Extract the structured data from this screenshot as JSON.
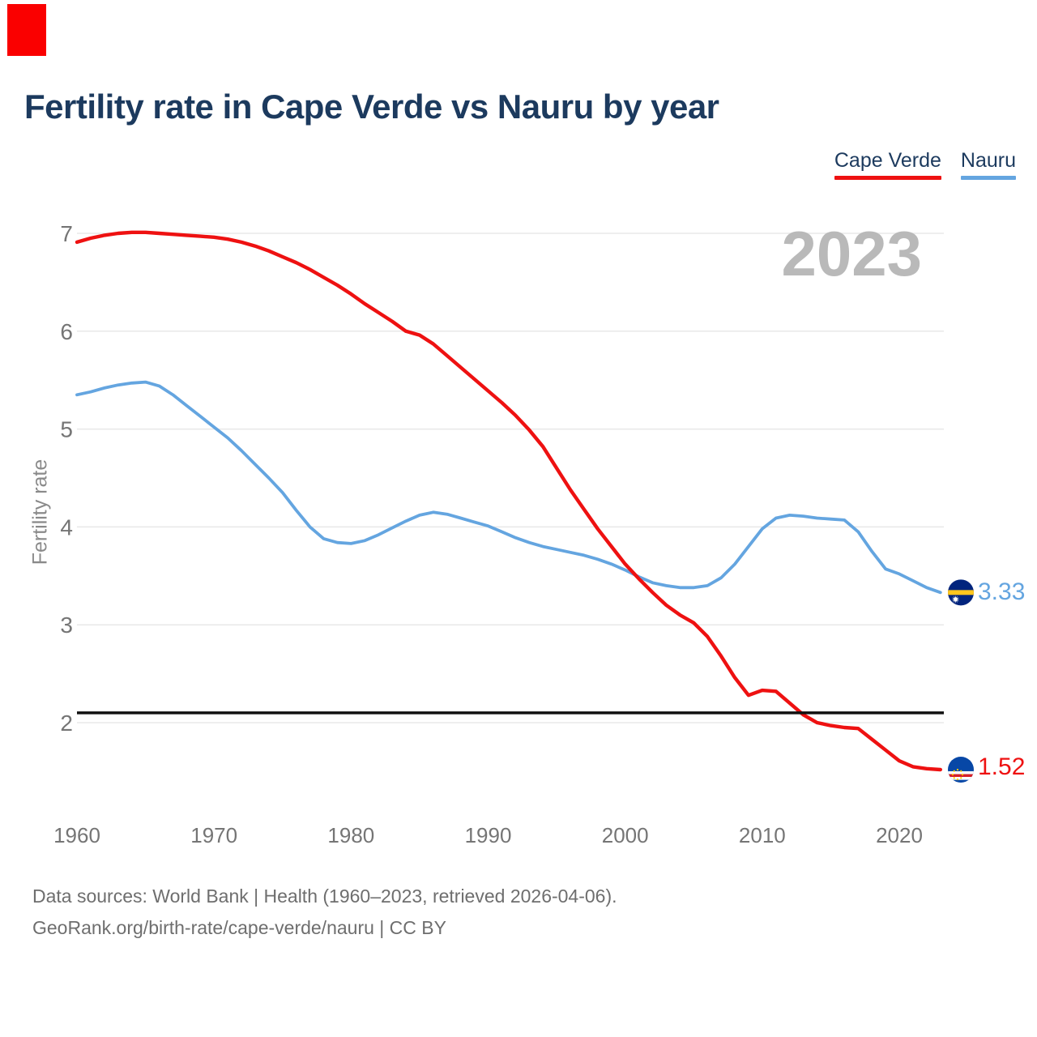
{
  "header": {
    "title": "Fertility rate in Cape Verde vs Nauru by year"
  },
  "legend": {
    "items": [
      {
        "label": "Cape Verde",
        "color": "#ee1111"
      },
      {
        "label": "Nauru",
        "color": "#64a5e0"
      }
    ]
  },
  "chart": {
    "ylabel": "Fertility rate",
    "watermark": "2023"
  },
  "footer": {
    "line1": "Data sources: World Bank | Health (1960–2023, retrieved 2026-04-06).",
    "line2": "GeoRank.org/birth-rate/cape-verde/nauru | CC BY"
  },
  "colors": {
    "title_text": "#1c3a5e",
    "axis_text": "#757575",
    "axis_title_text": "#8a8a8a",
    "watermark_text": "#b9b9b9",
    "footer_text": "#6e6e6e",
    "gridline": "#e8e8e8",
    "corner_mark": "#fa0000",
    "reference_line": "#111111"
  },
  "chart_data": {
    "type": "line",
    "title": "Fertility rate in Cape Verde vs Nauru by year",
    "xlabel": "",
    "ylabel": "Fertility rate",
    "watermark": "2023",
    "grid": true,
    "legend_position": "top-right",
    "xlim": [
      1960,
      2023
    ],
    "ylim": [
      1.35,
      7.15
    ],
    "yticks": [
      7,
      6,
      5,
      4,
      3,
      2
    ],
    "xticks": [
      1960,
      1970,
      1980,
      1990,
      2000,
      2010,
      2020
    ],
    "reference_line": {
      "value": 2.1,
      "color": "#111111"
    },
    "x": [
      1960,
      1961,
      1962,
      1963,
      1964,
      1965,
      1966,
      1967,
      1968,
      1969,
      1970,
      1971,
      1972,
      1973,
      1974,
      1975,
      1976,
      1977,
      1978,
      1979,
      1980,
      1981,
      1982,
      1983,
      1984,
      1985,
      1986,
      1987,
      1988,
      1989,
      1990,
      1991,
      1992,
      1993,
      1994,
      1995,
      1996,
      1997,
      1998,
      1999,
      2000,
      2001,
      2002,
      2003,
      2004,
      2005,
      2006,
      2007,
      2008,
      2009,
      2010,
      2011,
      2012,
      2013,
      2014,
      2015,
      2016,
      2017,
      2018,
      2019,
      2020,
      2021,
      2022,
      2023
    ],
    "series": [
      {
        "name": "Cape Verde",
        "color": "#ee1111",
        "flag": "cape-verde",
        "end_label": "1.52",
        "values": [
          6.91,
          6.95,
          6.98,
          7.0,
          7.01,
          7.01,
          7.0,
          6.99,
          6.98,
          6.97,
          6.96,
          6.94,
          6.91,
          6.87,
          6.82,
          6.76,
          6.7,
          6.63,
          6.55,
          6.47,
          6.38,
          6.28,
          6.19,
          6.1,
          6.0,
          5.96,
          5.87,
          5.75,
          5.63,
          5.51,
          5.39,
          5.27,
          5.14,
          4.99,
          4.82,
          4.6,
          4.38,
          4.18,
          3.98,
          3.8,
          3.62,
          3.47,
          3.33,
          3.2,
          3.1,
          3.02,
          2.88,
          2.68,
          2.46,
          2.28,
          2.33,
          2.32,
          2.2,
          2.08,
          2.0,
          1.97,
          1.95,
          1.94,
          1.83,
          1.72,
          1.61,
          1.55,
          1.53,
          1.52
        ]
      },
      {
        "name": "Nauru",
        "color": "#64a5e0",
        "flag": "nauru",
        "end_label": "3.33",
        "values": [
          5.35,
          5.38,
          5.42,
          5.45,
          5.47,
          5.48,
          5.44,
          5.35,
          5.24,
          5.13,
          5.02,
          4.91,
          4.78,
          4.64,
          4.5,
          4.35,
          4.17,
          4.0,
          3.88,
          3.84,
          3.83,
          3.86,
          3.92,
          3.99,
          4.06,
          4.12,
          4.15,
          4.13,
          4.09,
          4.05,
          4.01,
          3.95,
          3.89,
          3.84,
          3.8,
          3.77,
          3.74,
          3.71,
          3.67,
          3.62,
          3.56,
          3.49,
          3.43,
          3.4,
          3.38,
          3.38,
          3.4,
          3.48,
          3.62,
          3.8,
          3.98,
          4.09,
          4.12,
          4.11,
          4.09,
          4.08,
          4.07,
          3.95,
          3.75,
          3.57,
          3.52,
          3.45,
          3.38,
          3.33
        ]
      }
    ]
  }
}
